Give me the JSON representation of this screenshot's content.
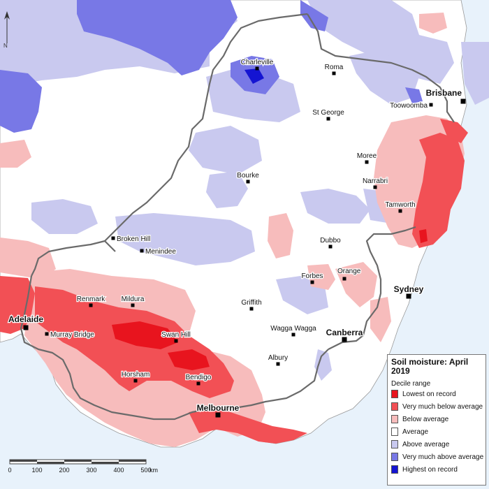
{
  "legend": {
    "title": "Soil moisture: April 2019",
    "subtitle": "Decile range",
    "items": [
      {
        "label": "Lowest on record",
        "color": "#e8141e"
      },
      {
        "label": "Very much below average",
        "color": "#f25055"
      },
      {
        "label": "Below average",
        "color": "#f7bcbc"
      },
      {
        "label": "Average",
        "color": "#ffffff"
      },
      {
        "label": "Above average",
        "color": "#c9c9ef"
      },
      {
        "label": "Very much above average",
        "color": "#7878e6"
      },
      {
        "label": "Highest on record",
        "color": "#1414d2"
      }
    ]
  },
  "cities": [
    {
      "name": "Charleville",
      "major": false
    },
    {
      "name": "Roma",
      "major": false
    },
    {
      "name": "Brisbane",
      "major": true
    },
    {
      "name": "Toowoomba",
      "major": false
    },
    {
      "name": "St George",
      "major": false
    },
    {
      "name": "Moree",
      "major": false
    },
    {
      "name": "Bourke",
      "major": false
    },
    {
      "name": "Narrabri",
      "major": false
    },
    {
      "name": "Tamworth",
      "major": false
    },
    {
      "name": "Broken Hill",
      "major": false
    },
    {
      "name": "Menindee",
      "major": false
    },
    {
      "name": "Dubbo",
      "major": false
    },
    {
      "name": "Forbes",
      "major": false
    },
    {
      "name": "Orange",
      "major": false
    },
    {
      "name": "Sydney",
      "major": true
    },
    {
      "name": "Renmark",
      "major": false
    },
    {
      "name": "Mildura",
      "major": false
    },
    {
      "name": "Griffith",
      "major": false
    },
    {
      "name": "Adelaide",
      "major": true
    },
    {
      "name": "Murray Bridge",
      "major": false
    },
    {
      "name": "Swan Hill",
      "major": false
    },
    {
      "name": "Wagga Wagga",
      "major": false
    },
    {
      "name": "Canberra",
      "major": true
    },
    {
      "name": "Albury",
      "major": false
    },
    {
      "name": "Horsham",
      "major": false
    },
    {
      "name": "Bendigo",
      "major": false
    },
    {
      "name": "Melbourne",
      "major": true
    }
  ],
  "scale": {
    "ticks": [
      "0",
      "100",
      "200",
      "300",
      "400",
      "500"
    ],
    "unit": "km"
  },
  "north_arrow": "N"
}
